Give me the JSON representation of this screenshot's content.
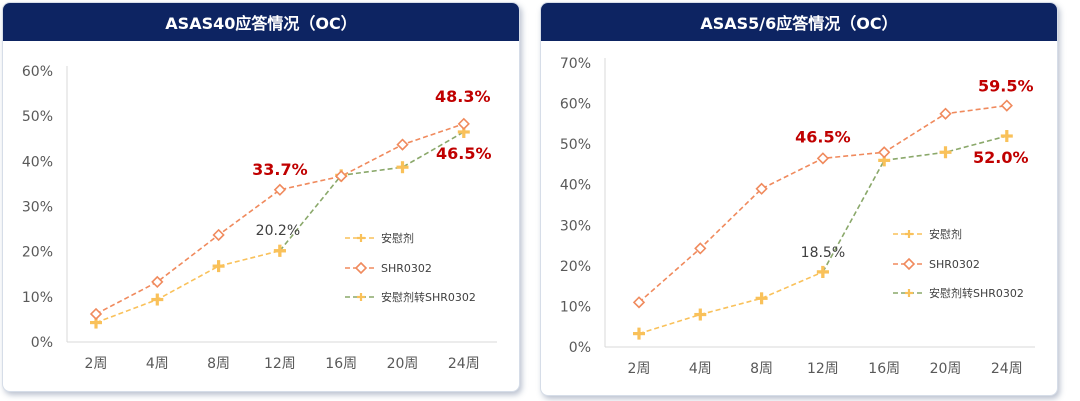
{
  "colors": {
    "header_bg": "#0d2462",
    "placebo": "#f9c15a",
    "shr0302": "#f08a5d",
    "switch_line": "#8aa86a",
    "switch_marker": "#f9c15a",
    "highlight": "#c00000",
    "axis_text": "#595959"
  },
  "chart_data": [
    {
      "type": "line",
      "title": "ASAS40应答情况（OC）",
      "categories": [
        "2周",
        "4周",
        "8周",
        "12周",
        "16周",
        "20周",
        "24周"
      ],
      "ylim": [
        0,
        60
      ],
      "yticks": [
        0,
        10,
        20,
        30,
        40,
        50,
        60
      ],
      "ytick_labels": [
        "0%",
        "10%",
        "20%",
        "30%",
        "40%",
        "50%",
        "60%"
      ],
      "grid": false,
      "legend_position": "right",
      "series": [
        {
          "name": "安慰剂",
          "marker": "plus",
          "values": [
            4.3,
            9.4,
            16.8,
            20.2,
            null,
            null,
            null
          ]
        },
        {
          "name": "SHR0302",
          "marker": "diamond",
          "values": [
            6.2,
            13.3,
            23.7,
            33.7,
            36.7,
            43.7,
            48.3
          ]
        },
        {
          "name": "安慰剂转SHR0302",
          "marker": "plus",
          "values": [
            null,
            null,
            null,
            20.2,
            36.9,
            38.7,
            46.5
          ]
        }
      ],
      "annotations": [
        {
          "text": "33.7%",
          "category": "12周",
          "value": 33.7,
          "style": "highlight"
        },
        {
          "text": "48.3%",
          "category": "24周",
          "value": 48.3,
          "style": "highlight"
        },
        {
          "text": "46.5%",
          "category": "24周",
          "value": 46.5,
          "style": "highlight"
        },
        {
          "text": "20.2%",
          "category": "12周",
          "value": 20.2,
          "style": "plain"
        }
      ]
    },
    {
      "type": "line",
      "title": "ASAS5/6应答情况（OC）",
      "categories": [
        "2周",
        "4周",
        "8周",
        "12周",
        "16周",
        "20周",
        "24周"
      ],
      "ylim": [
        0,
        70
      ],
      "yticks": [
        0,
        10,
        20,
        30,
        40,
        50,
        60,
        70
      ],
      "ytick_labels": [
        "0%",
        "10%",
        "20%",
        "30%",
        "40%",
        "50%",
        "60%",
        "70%"
      ],
      "grid": false,
      "legend_position": "right",
      "series": [
        {
          "name": "安慰剂",
          "marker": "plus",
          "values": [
            3.3,
            8.0,
            12.0,
            18.5,
            null,
            null,
            null
          ]
        },
        {
          "name": "SHR0302",
          "marker": "diamond",
          "values": [
            11.0,
            24.3,
            39.0,
            46.5,
            48.0,
            57.5,
            59.5
          ]
        },
        {
          "name": "安慰剂转SHR0302",
          "marker": "plus",
          "values": [
            null,
            null,
            null,
            18.5,
            46.0,
            48.0,
            52.0
          ]
        }
      ],
      "annotations": [
        {
          "text": "46.5%",
          "category": "12周",
          "value": 46.5,
          "style": "highlight"
        },
        {
          "text": "59.5%",
          "category": "24周",
          "value": 59.5,
          "style": "highlight"
        },
        {
          "text": "52.0%",
          "category": "24周",
          "value": 52.0,
          "style": "highlight"
        },
        {
          "text": "18.5%",
          "category": "12周",
          "value": 18.5,
          "style": "plain"
        }
      ]
    }
  ]
}
